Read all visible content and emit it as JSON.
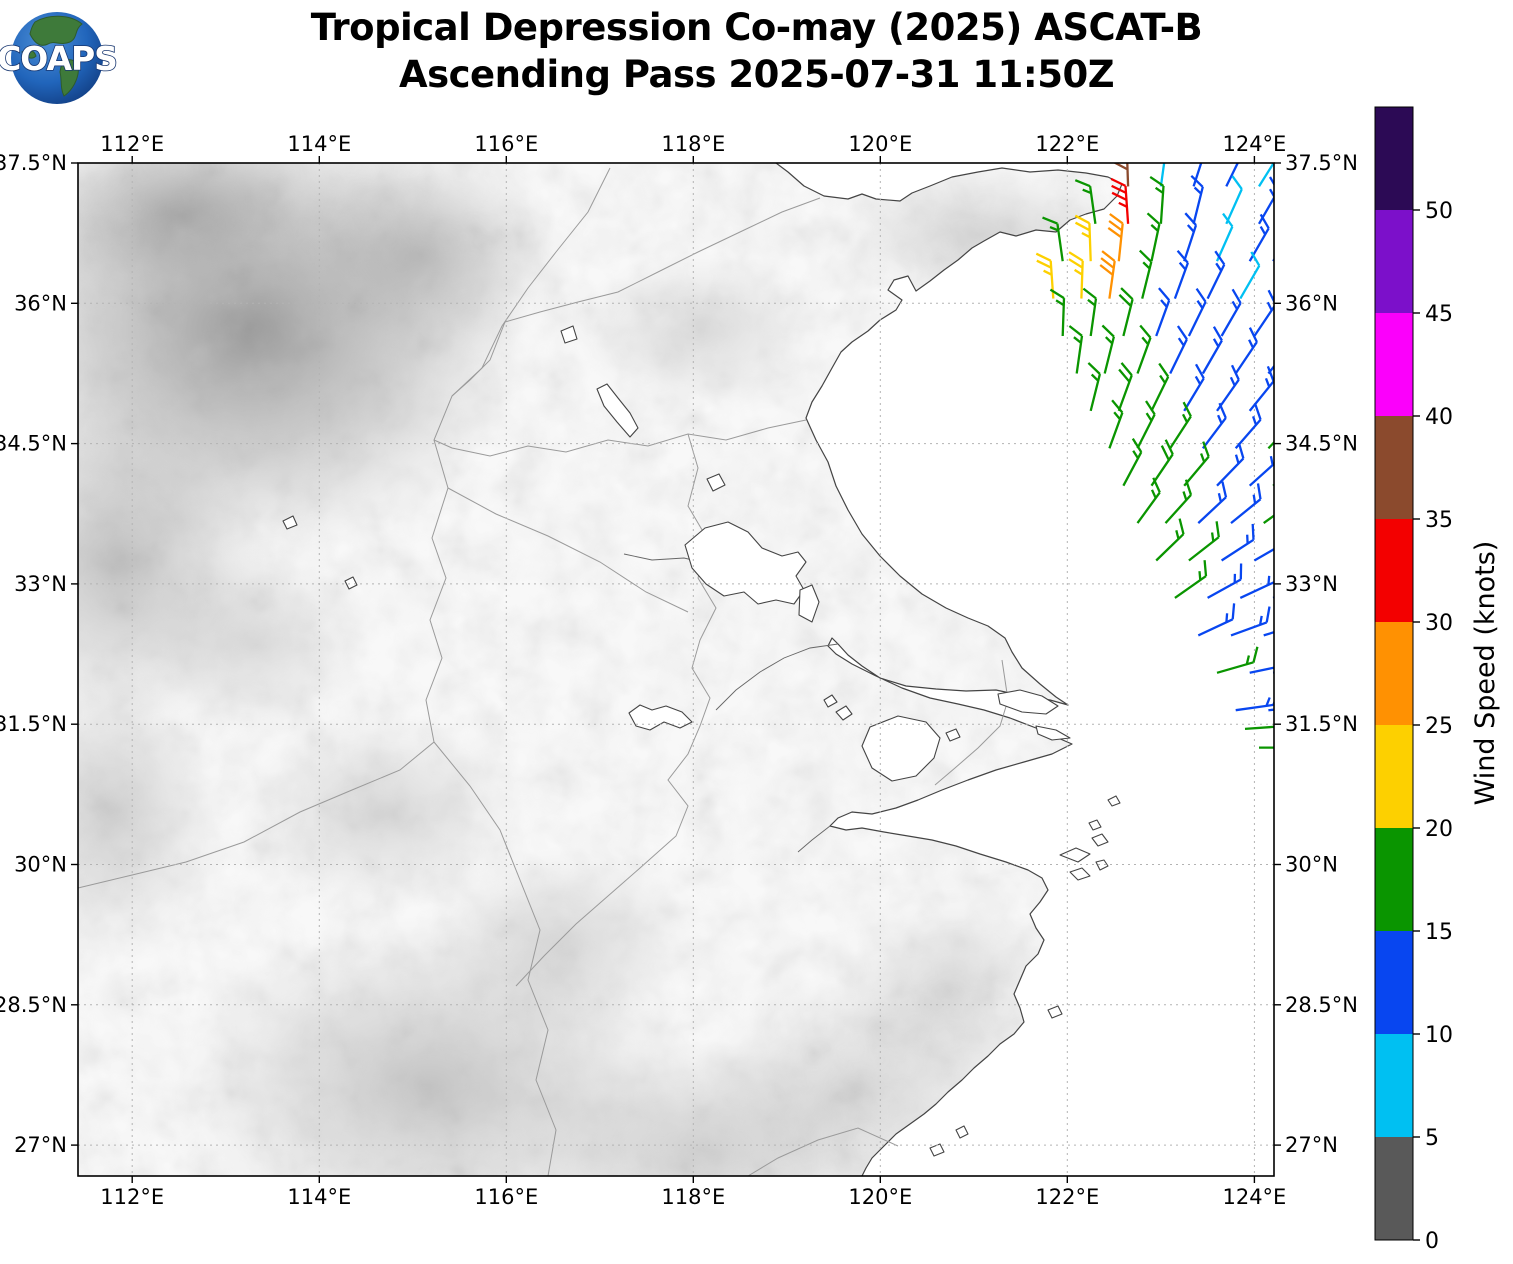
{
  "title": {
    "line1": "Tropical Depression Co-may (2025) ASCAT-B",
    "line2": "Ascending Pass 2025-07-31 11:50Z"
  },
  "logo": {
    "text": "COAPS"
  },
  "chart_data": {
    "type": "map",
    "subtype": "wind-barbs-satellite-pass",
    "projection": {
      "lon_min": 111.42,
      "lon_max": 124.21,
      "lat_min": 26.67,
      "lat_max": 37.5
    },
    "axes": {
      "lon_ticks": {
        "values": [
          112,
          114,
          116,
          118,
          120,
          122,
          124
        ],
        "labels": [
          "112°E",
          "114°E",
          "116°E",
          "118°E",
          "120°E",
          "122°E",
          "124°E"
        ]
      },
      "lat_ticks": {
        "values": [
          37.5,
          36,
          34.5,
          33,
          31.5,
          30,
          28.5,
          27
        ],
        "labels": [
          "37.5°N",
          "36°N",
          "34.5°N",
          "33°N",
          "31.5°N",
          "30°N",
          "28.5°N",
          "27°N"
        ]
      },
      "grid": {
        "show": true,
        "style": "dashed",
        "color": "#b3b3b3"
      }
    },
    "colorbar": {
      "label": "Wind Speed (knots)",
      "ticks": [
        0,
        5,
        10,
        15,
        20,
        25,
        30,
        35,
        40,
        45,
        50
      ],
      "segments": [
        {
          "ge": 0,
          "lt": 5,
          "color": "#595959"
        },
        {
          "ge": 5,
          "lt": 10,
          "color": "#00c0f2"
        },
        {
          "ge": 10,
          "lt": 15,
          "color": "#0846f0"
        },
        {
          "ge": 15,
          "lt": 20,
          "color": "#0a9500"
        },
        {
          "ge": 20,
          "lt": 25,
          "color": "#fdd000"
        },
        {
          "ge": 25,
          "lt": 30,
          "color": "#ff9102"
        },
        {
          "ge": 30,
          "lt": 35,
          "color": "#f30000"
        },
        {
          "ge": 35,
          "lt": 40,
          "color": "#8b4a2d"
        },
        {
          "ge": 40,
          "lt": 45,
          "color": "#fb00fb"
        },
        {
          "ge": 45,
          "lt": 50,
          "color": "#7c10ca"
        },
        {
          "ge": 50,
          "lt": 55,
          "color": "#2c0a55"
        }
      ]
    },
    "barbs": {
      "fields": [
        "lon",
        "lat",
        "knots",
        "dir_from_deg"
      ],
      "values": [
        [
          122.65,
          37.25,
          38,
          358
        ],
        [
          123.0,
          37.25,
          8,
          8
        ],
        [
          123.35,
          37.25,
          13,
          18
        ],
        [
          123.7,
          37.25,
          13,
          26
        ],
        [
          124.05,
          37.25,
          8,
          32
        ],
        [
          122.3,
          36.85,
          17,
          352
        ],
        [
          122.65,
          36.85,
          33,
          356
        ],
        [
          123.0,
          36.85,
          17,
          4
        ],
        [
          123.35,
          36.85,
          13,
          14
        ],
        [
          123.7,
          36.85,
          8,
          24
        ],
        [
          124.05,
          36.85,
          13,
          30
        ],
        [
          121.95,
          36.45,
          17,
          352
        ],
        [
          122.25,
          36.45,
          23,
          358
        ],
        [
          122.55,
          36.45,
          28,
          6
        ],
        [
          122.9,
          36.45,
          17,
          12
        ],
        [
          123.25,
          36.45,
          13,
          18
        ],
        [
          123.6,
          36.45,
          8,
          24
        ],
        [
          123.95,
          36.45,
          13,
          30
        ],
        [
          124.2,
          36.45,
          13,
          34
        ],
        [
          121.85,
          36.05,
          23,
          356
        ],
        [
          122.15,
          36.05,
          23,
          2
        ],
        [
          122.45,
          36.05,
          28,
          8
        ],
        [
          122.8,
          36.05,
          17,
          14
        ],
        [
          123.15,
          36.05,
          13,
          20
        ],
        [
          123.5,
          36.05,
          13,
          26
        ],
        [
          123.85,
          36.05,
          8,
          30
        ],
        [
          124.2,
          36.05,
          13,
          34
        ],
        [
          121.95,
          35.65,
          17,
          2
        ],
        [
          122.25,
          35.65,
          17,
          8
        ],
        [
          122.6,
          35.65,
          19,
          14
        ],
        [
          122.95,
          35.65,
          13,
          20
        ],
        [
          123.3,
          35.65,
          13,
          26
        ],
        [
          123.65,
          35.65,
          13,
          30
        ],
        [
          124.0,
          35.65,
          13,
          34
        ],
        [
          122.1,
          35.25,
          17,
          8
        ],
        [
          122.4,
          35.25,
          17,
          14
        ],
        [
          122.75,
          35.25,
          17,
          20
        ],
        [
          123.1,
          35.25,
          13,
          26
        ],
        [
          123.45,
          35.25,
          13,
          30
        ],
        [
          123.8,
          35.25,
          13,
          34
        ],
        [
          124.15,
          35.25,
          13,
          38
        ],
        [
          122.25,
          34.85,
          17,
          14
        ],
        [
          122.55,
          34.85,
          19,
          20
        ],
        [
          122.9,
          34.85,
          17,
          26
        ],
        [
          123.25,
          34.85,
          13,
          31
        ],
        [
          123.6,
          34.85,
          13,
          35
        ],
        [
          123.95,
          34.85,
          13,
          39
        ],
        [
          122.45,
          34.45,
          17,
          20
        ],
        [
          122.75,
          34.45,
          17,
          27
        ],
        [
          123.1,
          34.45,
          17,
          33
        ],
        [
          123.45,
          34.45,
          13,
          37
        ],
        [
          123.8,
          34.45,
          13,
          41
        ],
        [
          124.15,
          34.45,
          17,
          44
        ],
        [
          122.6,
          34.05,
          17,
          28
        ],
        [
          122.9,
          34.05,
          19,
          34
        ],
        [
          123.25,
          34.05,
          17,
          40
        ],
        [
          123.6,
          34.05,
          13,
          44
        ],
        [
          123.95,
          34.05,
          13,
          48
        ],
        [
          124.2,
          34.05,
          17,
          50
        ],
        [
          122.75,
          33.65,
          17,
          36
        ],
        [
          123.05,
          33.65,
          17,
          42
        ],
        [
          123.4,
          33.65,
          13,
          47
        ],
        [
          123.75,
          33.65,
          13,
          51
        ],
        [
          124.1,
          33.65,
          17,
          54
        ],
        [
          122.95,
          33.25,
          17,
          46
        ],
        [
          123.3,
          33.25,
          17,
          52
        ],
        [
          123.65,
          33.25,
          13,
          57
        ],
        [
          124.0,
          33.25,
          13,
          60
        ],
        [
          123.15,
          32.85,
          17,
          55
        ],
        [
          123.5,
          32.85,
          13,
          61
        ],
        [
          123.85,
          32.85,
          13,
          65
        ],
        [
          124.2,
          32.85,
          13,
          67
        ],
        [
          123.4,
          32.45,
          13,
          65
        ],
        [
          123.75,
          32.45,
          13,
          70
        ],
        [
          124.1,
          32.45,
          13,
          73
        ],
        [
          123.6,
          32.05,
          17,
          74
        ],
        [
          123.95,
          32.05,
          13,
          78
        ],
        [
          124.2,
          32.05,
          13,
          80
        ],
        [
          123.8,
          31.65,
          13,
          82
        ],
        [
          124.15,
          31.65,
          13,
          85
        ],
        [
          123.9,
          31.45,
          17,
          86
        ],
        [
          124.05,
          31.25,
          17,
          90
        ]
      ]
    }
  }
}
